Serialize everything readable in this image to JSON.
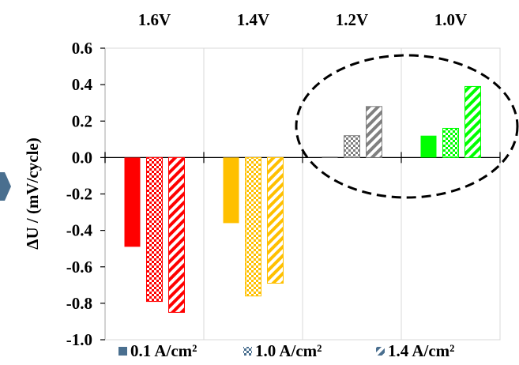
{
  "chart_data": {
    "type": "bar",
    "title": "",
    "xlabel": "",
    "ylabel": "ΔU / (mV/cycle)",
    "ylim": [
      -1.0,
      0.6
    ],
    "yticks": [
      "0.6",
      "0.4",
      "0.2",
      "0.0",
      "-0.2",
      "-0.4",
      "-0.6",
      "-0.8",
      "-1.0"
    ],
    "ytick_values": [
      0.6,
      0.4,
      0.2,
      0.0,
      -0.2,
      -0.4,
      -0.6,
      -0.8,
      -1.0
    ],
    "categories": [
      "1.6V",
      "1.4V",
      "1.2V",
      "1.0V"
    ],
    "category_axis_position": "top",
    "grid": "vertical",
    "category_colors": [
      "#ff0000",
      "#ffc000",
      "#808080",
      "#00ff00"
    ],
    "series": [
      {
        "name": "0.1 A/cm²",
        "pattern": "solid",
        "values": [
          -0.49,
          -0.36,
          0.005,
          0.12
        ]
      },
      {
        "name": "1.0 A/cm²",
        "pattern": "checker",
        "values": [
          -0.79,
          -0.76,
          0.12,
          0.16
        ]
      },
      {
        "name": "1.4 A/cm²",
        "pattern": "diagonal-stripes",
        "values": [
          -0.85,
          -0.69,
          0.28,
          0.39
        ]
      }
    ],
    "legend_position": "bottom",
    "annotation": "dashed ellipse around the 1.2V and 1.0V groups"
  }
}
